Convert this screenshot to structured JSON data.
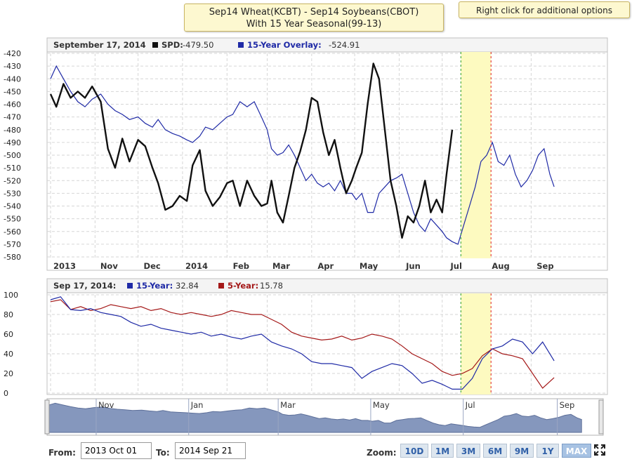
{
  "title": {
    "line1": "Sep14 Wheat(KCBT) - Sep14 Soybeans(CBOT)",
    "line2": "With 15 Year Seasonal(99-13)"
  },
  "hint": "Right click for additional options",
  "colors": {
    "spd": "#111111",
    "overlay": "#1f2aa6",
    "five_year": "#a41818",
    "highlight": "#fdfac0",
    "navigator_fill": "#8597bd",
    "green_marker": "#2a9d2a",
    "red_marker": "#e02020"
  },
  "top_legend": {
    "date": "September 17, 2014",
    "spd_label": "SPD:",
    "spd_value": "-479.50",
    "overlay_label": "15-Year Overlay:",
    "overlay_value": "-524.91"
  },
  "bottom_legend": {
    "date": "Sep 17, 2014:",
    "fifteen_label": "15-Year:",
    "fifteen_value": "32.84",
    "five_label": "5-Year:",
    "five_value": "15.78"
  },
  "chart_data": [
    {
      "type": "line",
      "x_labels": [
        "2013",
        "Nov",
        "Dec",
        "2014",
        "Feb",
        "Mar",
        "Apr",
        "May",
        "Jun",
        "Jul",
        "Aug",
        "Sep"
      ],
      "y_ticks": [
        -420,
        -430,
        -440,
        -450,
        -460,
        -470,
        -480,
        -490,
        -500,
        -510,
        -520,
        -530,
        -540,
        -550,
        -560,
        -570,
        -580
      ],
      "ylim": [
        -580,
        -420
      ],
      "grid": true,
      "series": [
        {
          "name": "SPD",
          "x": [
            "2013-10-01",
            "2013-10-05",
            "2013-10-10",
            "2013-10-15",
            "2013-10-20",
            "2013-10-25",
            "2013-10-30",
            "2013-11-05",
            "2013-11-10",
            "2013-11-15",
            "2013-11-20",
            "2013-11-25",
            "2013-12-01",
            "2013-12-06",
            "2013-12-11",
            "2013-12-15",
            "2013-12-20",
            "2013-12-25",
            "2013-12-30",
            "2014-01-04",
            "2014-01-08",
            "2014-01-13",
            "2014-01-17",
            "2014-01-22",
            "2014-01-27",
            "2014-02-01",
            "2014-02-05",
            "2014-02-10",
            "2014-02-15",
            "2014-02-20",
            "2014-02-25",
            "2014-03-01",
            "2014-03-04",
            "2014-03-08",
            "2014-03-12",
            "2014-03-16",
            "2014-03-20",
            "2014-03-24",
            "2014-03-28",
            "2014-04-01",
            "2014-04-05",
            "2014-04-09",
            "2014-04-13",
            "2014-04-17",
            "2014-04-21",
            "2014-04-25",
            "2014-04-29",
            "2014-05-02",
            "2014-05-06",
            "2014-05-10",
            "2014-05-14",
            "2014-05-18",
            "2014-05-22",
            "2014-05-26",
            "2014-05-30",
            "2014-06-03",
            "2014-06-07",
            "2014-06-11",
            "2014-06-15",
            "2014-06-19",
            "2014-06-23",
            "2014-06-27",
            "2014-07-01",
            "2014-07-04",
            "2014-07-08"
          ],
          "values": [
            -452,
            -462,
            -444,
            -455,
            -450,
            -455,
            -446,
            -458,
            -495,
            -510,
            -487,
            -505,
            -488,
            -493,
            -510,
            -522,
            -543,
            -540,
            -532,
            -536,
            -508,
            -496,
            -528,
            -540,
            -533,
            -522,
            -520,
            -540,
            -520,
            -532,
            -540,
            -538,
            -520,
            -545,
            -553,
            -532,
            -510,
            -497,
            -480,
            -455,
            -458,
            -482,
            -500,
            -488,
            -510,
            -530,
            -520,
            -510,
            -498,
            -460,
            -428,
            -440,
            -480,
            -520,
            -540,
            -565,
            -548,
            -553,
            -540,
            -520,
            -545,
            -535,
            -545,
            -515,
            -480
          ]
        },
        {
          "name": "15-Year Overlay",
          "x": [
            "2013-10-01",
            "2013-10-05",
            "2013-10-10",
            "2013-10-15",
            "2013-10-20",
            "2013-10-25",
            "2013-10-30",
            "2013-11-05",
            "2013-11-10",
            "2013-11-15",
            "2013-11-20",
            "2013-11-25",
            "2013-12-01",
            "2013-12-06",
            "2013-12-11",
            "2013-12-15",
            "2013-12-20",
            "2013-12-25",
            "2013-12-30",
            "2014-01-04",
            "2014-01-08",
            "2014-01-13",
            "2014-01-17",
            "2014-01-22",
            "2014-01-27",
            "2014-02-01",
            "2014-02-05",
            "2014-02-10",
            "2014-02-15",
            "2014-02-20",
            "2014-02-25",
            "2014-03-01",
            "2014-03-04",
            "2014-03-08",
            "2014-03-12",
            "2014-03-16",
            "2014-03-20",
            "2014-03-24",
            "2014-03-28",
            "2014-04-01",
            "2014-04-05",
            "2014-04-09",
            "2014-04-13",
            "2014-04-17",
            "2014-04-21",
            "2014-04-25",
            "2014-04-29",
            "2014-05-02",
            "2014-05-06",
            "2014-05-10",
            "2014-05-14",
            "2014-05-18",
            "2014-05-22",
            "2014-05-26",
            "2014-05-30",
            "2014-06-03",
            "2014-06-07",
            "2014-06-11",
            "2014-06-15",
            "2014-06-19",
            "2014-06-23",
            "2014-06-27",
            "2014-07-01",
            "2014-07-04",
            "2014-07-08",
            "2014-07-12",
            "2014-07-16",
            "2014-07-20",
            "2014-07-24",
            "2014-07-28",
            "2014-08-01",
            "2014-08-05",
            "2014-08-09",
            "2014-08-13",
            "2014-08-17",
            "2014-08-21",
            "2014-08-25",
            "2014-08-29",
            "2014-09-02",
            "2014-09-06",
            "2014-09-10",
            "2014-09-14",
            "2014-09-17"
          ],
          "values": [
            -440,
            -430,
            -440,
            -450,
            -458,
            -462,
            -456,
            -452,
            -460,
            -465,
            -468,
            -472,
            -470,
            -475,
            -478,
            -472,
            -480,
            -483,
            -485,
            -488,
            -490,
            -485,
            -478,
            -480,
            -475,
            -470,
            -468,
            -458,
            -462,
            -458,
            -470,
            -480,
            -495,
            -500,
            -498,
            -492,
            -500,
            -510,
            -520,
            -515,
            -522,
            -525,
            -522,
            -528,
            -520,
            -530,
            -530,
            -535,
            -530,
            -545,
            -545,
            -530,
            -525,
            -520,
            -518,
            -515,
            -530,
            -545,
            -555,
            -560,
            -550,
            -555,
            -560,
            -565,
            -568,
            -570,
            -555,
            -540,
            -525,
            -505,
            -500,
            -490,
            -505,
            -508,
            -500,
            -515,
            -525,
            -520,
            -512,
            -500,
            -495,
            -515,
            -524.91
          ]
        }
      ]
    },
    {
      "type": "line",
      "y_ticks": [
        100,
        80,
        60,
        40,
        20,
        0
      ],
      "ylim": [
        0,
        100
      ],
      "grid": true,
      "series": [
        {
          "name": "15-Year",
          "x": [
            "2013-10-01",
            "2013-10-08",
            "2013-10-15",
            "2013-10-22",
            "2013-10-29",
            "2013-11-05",
            "2013-11-12",
            "2013-11-19",
            "2013-11-26",
            "2013-12-03",
            "2013-12-10",
            "2013-12-17",
            "2013-12-24",
            "2013-12-31",
            "2014-01-07",
            "2014-01-14",
            "2014-01-21",
            "2014-01-28",
            "2014-02-04",
            "2014-02-11",
            "2014-02-18",
            "2014-02-25",
            "2014-03-04",
            "2014-03-11",
            "2014-03-18",
            "2014-03-25",
            "2014-04-01",
            "2014-04-08",
            "2014-04-15",
            "2014-04-22",
            "2014-04-29",
            "2014-05-06",
            "2014-05-13",
            "2014-05-20",
            "2014-05-27",
            "2014-06-03",
            "2014-06-10",
            "2014-06-17",
            "2014-06-24",
            "2014-07-01",
            "2014-07-08",
            "2014-07-15",
            "2014-07-22",
            "2014-07-29",
            "2014-08-05",
            "2014-08-12",
            "2014-08-19",
            "2014-08-26",
            "2014-09-02",
            "2014-09-09",
            "2014-09-17"
          ],
          "values": [
            95,
            98,
            85,
            84,
            86,
            82,
            80,
            78,
            72,
            68,
            70,
            66,
            64,
            62,
            60,
            62,
            58,
            60,
            57,
            55,
            58,
            60,
            52,
            48,
            45,
            40,
            32,
            30,
            30,
            28,
            26,
            15,
            22,
            26,
            30,
            28,
            20,
            10,
            13,
            9,
            4,
            4,
            15,
            35,
            45,
            48,
            55,
            52,
            40,
            52,
            32.84
          ]
        },
        {
          "name": "5-Year",
          "x": [
            "2013-10-01",
            "2013-10-08",
            "2013-10-15",
            "2013-10-22",
            "2013-10-29",
            "2013-11-05",
            "2013-11-12",
            "2013-11-19",
            "2013-11-26",
            "2013-12-03",
            "2013-12-10",
            "2013-12-17",
            "2013-12-24",
            "2013-12-31",
            "2014-01-07",
            "2014-01-14",
            "2014-01-21",
            "2014-01-28",
            "2014-02-04",
            "2014-02-11",
            "2014-02-18",
            "2014-02-25",
            "2014-03-04",
            "2014-03-11",
            "2014-03-18",
            "2014-03-25",
            "2014-04-01",
            "2014-04-08",
            "2014-04-15",
            "2014-04-22",
            "2014-04-29",
            "2014-05-06",
            "2014-05-13",
            "2014-05-20",
            "2014-05-27",
            "2014-06-03",
            "2014-06-10",
            "2014-06-17",
            "2014-06-24",
            "2014-07-01",
            "2014-07-08",
            "2014-07-15",
            "2014-07-22",
            "2014-07-29",
            "2014-08-05",
            "2014-08-12",
            "2014-08-19",
            "2014-08-26",
            "2014-09-02",
            "2014-09-09",
            "2014-09-17"
          ],
          "values": [
            93,
            95,
            85,
            88,
            84,
            86,
            90,
            88,
            86,
            88,
            84,
            86,
            82,
            80,
            82,
            80,
            78,
            80,
            84,
            82,
            80,
            80,
            75,
            70,
            62,
            58,
            56,
            54,
            55,
            58,
            54,
            56,
            60,
            58,
            55,
            48,
            40,
            35,
            30,
            22,
            18,
            20,
            25,
            38,
            45,
            40,
            38,
            35,
            20,
            5,
            15.78
          ]
        }
      ]
    }
  ],
  "navigator": {
    "labels": [
      "Nov",
      "Jan",
      "Mar",
      "May",
      "Jul",
      "Sep"
    ]
  },
  "range_selector": {
    "from_label": "From:",
    "from_value": "2013 Oct 01",
    "to_label": "To:",
    "to_value": "2014 Sep 21",
    "zoom_label": "Zoom:",
    "buttons": [
      "10D",
      "1M",
      "3M",
      "6M",
      "9M",
      "1Y",
      "MAX"
    ],
    "active": "MAX"
  }
}
